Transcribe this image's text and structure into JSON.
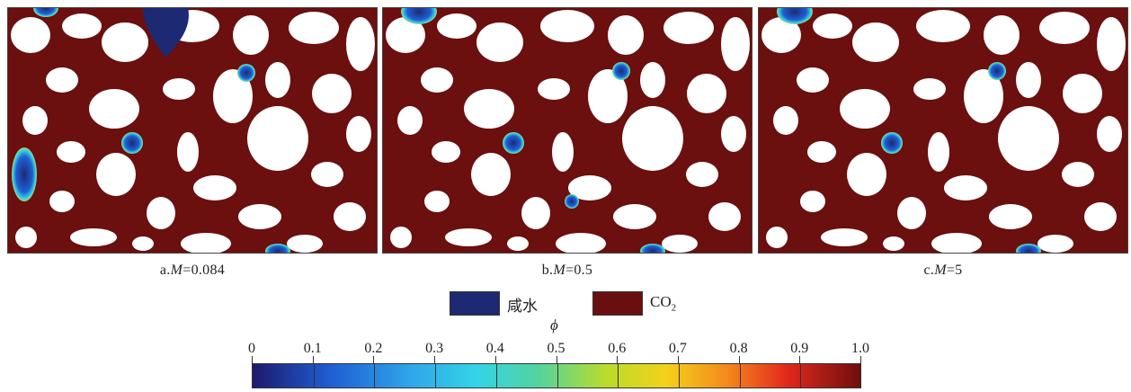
{
  "panels": [
    {
      "id": "a",
      "label_prefix": "a.",
      "var": "M",
      "label_value": "=0.084"
    },
    {
      "id": "b",
      "label_prefix": "b.",
      "var": "M",
      "label_value": "=0.5"
    },
    {
      "id": "c",
      "label_prefix": "c.",
      "var": "M",
      "label_value": "=5"
    }
  ],
  "legend": {
    "brine_label": "咸水",
    "co2_label": "CO",
    "co2_subscript": "2",
    "brine_color": "#1d2a73",
    "co2_color": "#6a0f10"
  },
  "colorbar": {
    "variable": "ϕ",
    "ticks": [
      "0",
      "0.1",
      "0.2",
      "0.3",
      "0.4",
      "0.5",
      "0.6",
      "0.7",
      "0.8",
      "0.9",
      "1.0"
    ]
  },
  "colors": {
    "fluid_co2": "#6b0f0f",
    "grain": "#ffffff",
    "brine": "#1d2a73"
  }
}
